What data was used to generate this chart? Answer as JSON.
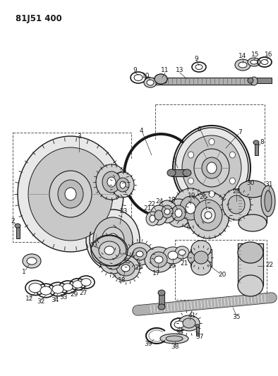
{
  "title": "81J51 400",
  "bg_color": "#ffffff",
  "fig_width": 3.94,
  "fig_height": 5.33,
  "dpi": 100,
  "dark": "#1a1a1a",
  "gray1": "#b0b0b0",
  "gray2": "#d0d0d0",
  "gray3": "#888888",
  "gray4": "#e8e8e8"
}
